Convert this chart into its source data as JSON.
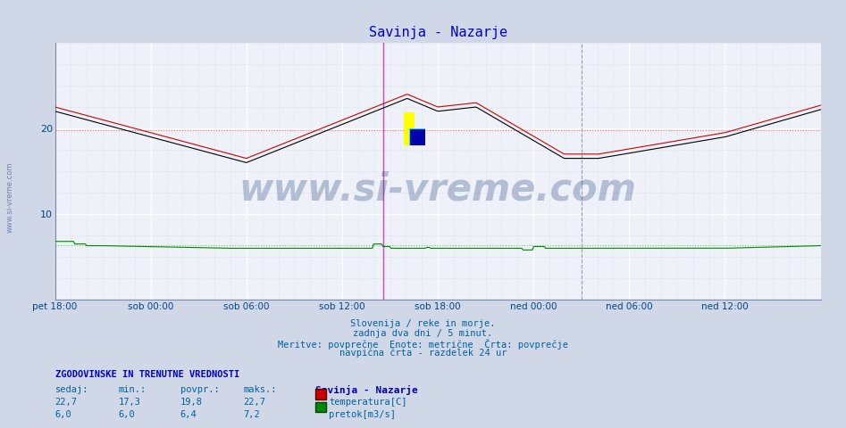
{
  "title": "Savinja - Nazarje",
  "title_color": "#0000cc",
  "bg_color": "#d0d8e8",
  "plot_bg_color": "#eef2f8",
  "grid_color_major": "#ffffff",
  "grid_color_minor": "#d0d8ee",
  "x_labels": [
    "pet 18:00",
    "sob 00:00",
    "sob 06:00",
    "sob 12:00",
    "sob 18:00",
    "ned 00:00",
    "ned 06:00",
    "ned 12:00"
  ],
  "ylim_min": 0,
  "ylim_max": 30,
  "temp_color": "#cc0000",
  "temp2_color": "#000000",
  "flow_color": "#008800",
  "avg_temp": 19.8,
  "avg_flow": 6.4,
  "watermark_text": "www.si-vreme.com",
  "watermark_color": "#1a3a7a",
  "watermark_alpha": 0.28,
  "footer_lines": [
    "Slovenija / reke in morje.",
    "zadnja dva dni / 5 minut.",
    "Meritve: povprečne  Enote: metrične  Črta: povprečje",
    "navpična črta - razdelek 24 ur"
  ],
  "footer_color": "#0060a0",
  "stats_header": "ZGODOVINSKE IN TRENUTNE VREDNOSTI",
  "stats_color": "#0060a0",
  "stats_bold_color": "#0000cc",
  "col_headers": [
    "sedaj:",
    "min.:",
    "povpr.:",
    "maks.:"
  ],
  "temp_row": [
    "22,7",
    "17,3",
    "19,8",
    "22,7"
  ],
  "flow_row": [
    "6,0",
    "6,0",
    "6,4",
    "7,2"
  ],
  "legend_label_temp": "temperatura[C]",
  "legend_label_flow": "pretok[m3/s]",
  "station_label": "Savinja - Nazarje",
  "left_label": "www.si-vreme.com",
  "left_label_color": "#5070a0",
  "purple_vline_x": 0.857,
  "dashed_vline_x": 1.375,
  "xmin": 0.0,
  "xmax": 2.0
}
